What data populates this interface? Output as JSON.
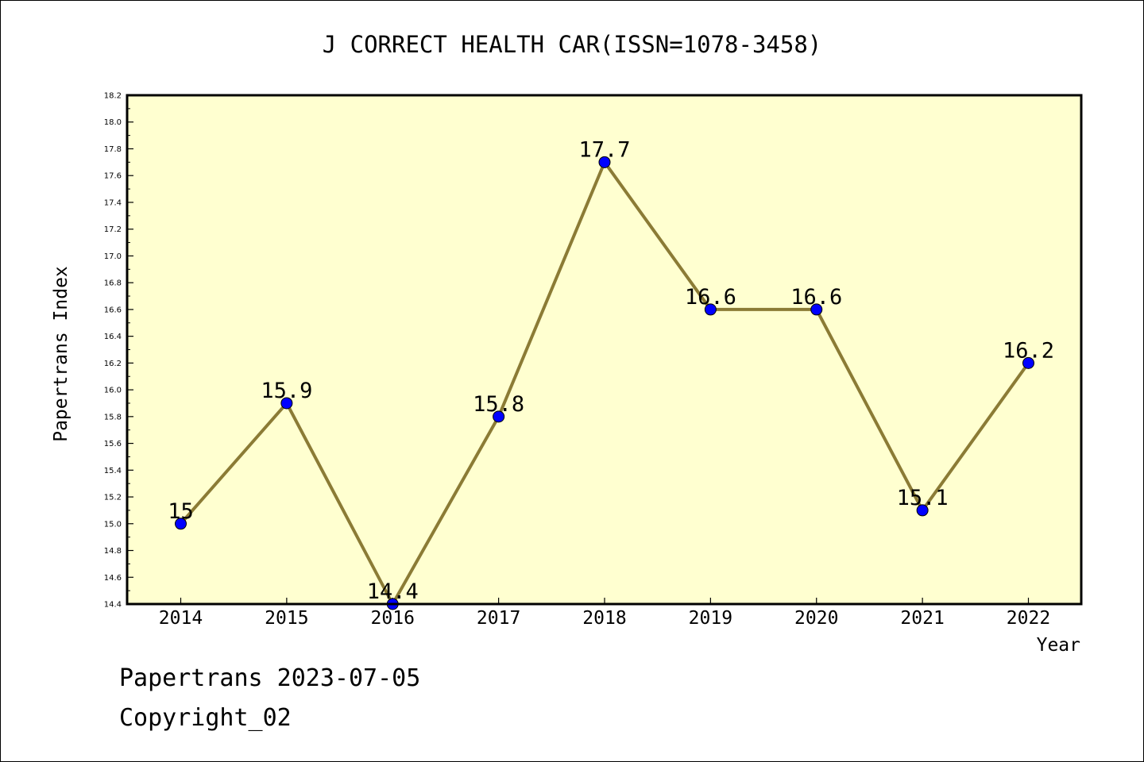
{
  "chart_data": {
    "type": "line",
    "title": "J CORRECT HEALTH CAR(ISSN=1078-3458)",
    "xlabel": "Year",
    "ylabel": "Papertrans Index",
    "categories": [
      "2014",
      "2015",
      "2016",
      "2017",
      "2018",
      "2019",
      "2020",
      "2021",
      "2022"
    ],
    "series": [
      {
        "values": [
          15,
          15.9,
          14.4,
          15.8,
          17.7,
          16.6,
          16.6,
          15.1,
          16.2
        ],
        "labels": [
          "15",
          "15.9",
          "14.4",
          "15.8",
          "17.7",
          "16.6",
          "16.6",
          "15.1",
          "16.2"
        ]
      }
    ],
    "ylim": [
      14.4,
      18.2
    ],
    "yticks": [
      "14.4",
      "14.6",
      "14.8",
      "15.0",
      "15.2",
      "15.4",
      "15.6",
      "15.8",
      "16.0",
      "16.2",
      "16.4",
      "16.6",
      "16.8",
      "17.0",
      "17.2",
      "17.4",
      "17.6",
      "17.8",
      "18.0",
      "18.2"
    ],
    "grid": false,
    "colors": {
      "plot_background": "#ffffd0",
      "line": "#8b7b35",
      "marker": "#0000ff"
    }
  },
  "footer": {
    "line1": "Papertrans 2023-07-05",
    "line2": "Copyright_02"
  }
}
